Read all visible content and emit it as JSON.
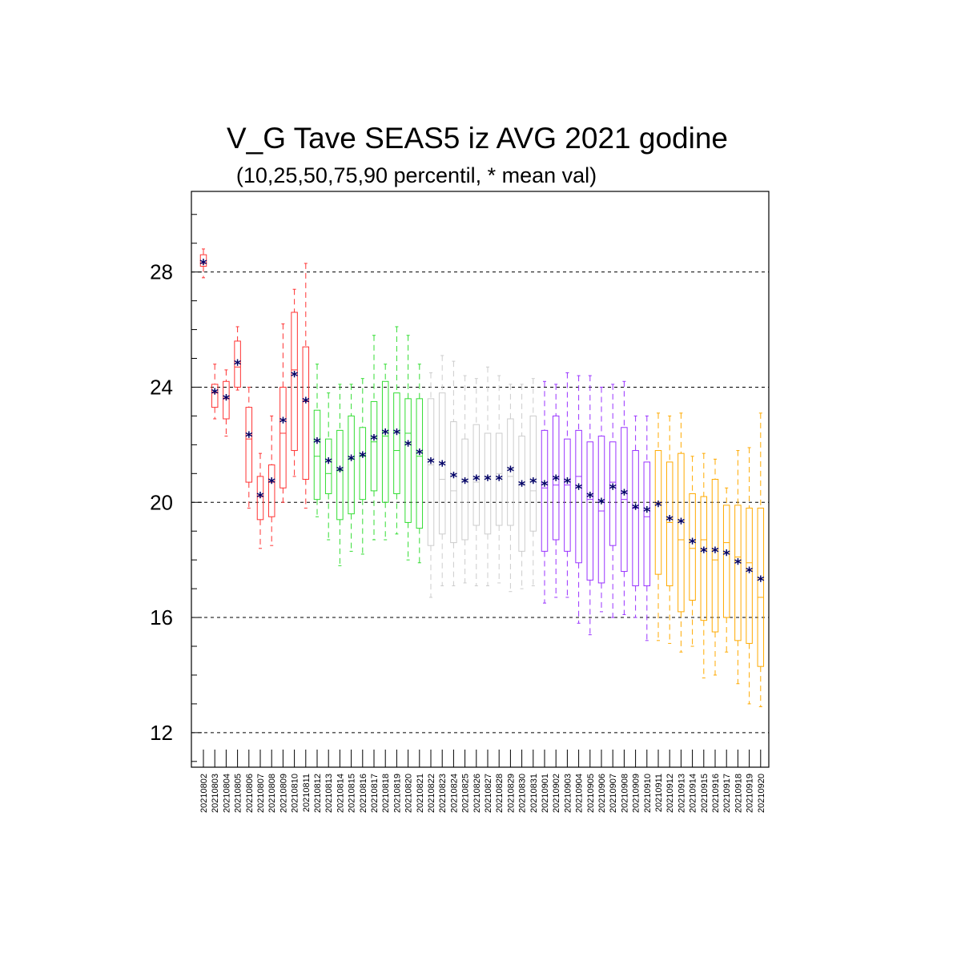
{
  "chart_data": {
    "type": "box",
    "title": "V_G Tave SEAS5 iz AVG 2021 godine",
    "subtitle": "(10,25,50,75,90 percentil, * mean val)",
    "ylim": [
      10.8,
      30.8
    ],
    "yticks": [
      12,
      16,
      20,
      24,
      28
    ],
    "ytick_labels": [
      "12",
      "16",
      "20",
      "24",
      "28"
    ],
    "grid_y": true,
    "mean_marker": "*",
    "colors": {
      "aug": "#ff3333",
      "early_aug": "#33dd33",
      "late_aug": "#cccccc",
      "early_sep": "#9933ff",
      "late_sep": "#ffaa00",
      "mean": "#000066"
    },
    "categories": [
      "20210802",
      "20210803",
      "20210804",
      "20210805",
      "20210806",
      "20210807",
      "20210808",
      "20210809",
      "20210810",
      "20210811",
      "20210812",
      "20210813",
      "20210814",
      "20210815",
      "20210816",
      "20210817",
      "20210818",
      "20210819",
      "20210820",
      "20210821",
      "20210822",
      "20210823",
      "20210824",
      "20210825",
      "20210826",
      "20210827",
      "20210828",
      "20210829",
      "20210830",
      "20210831",
      "20210901",
      "20210902",
      "20210903",
      "20210904",
      "20210905",
      "20210906",
      "20210907",
      "20210908",
      "20210909",
      "20210910",
      "20210911",
      "20210912",
      "20210913",
      "20210914",
      "20210915",
      "20210916",
      "20210917",
      "20210918",
      "20210919",
      "20210920"
    ],
    "box_colors": [
      "aug",
      "aug",
      "aug",
      "aug",
      "aug",
      "aug",
      "aug",
      "aug",
      "aug",
      "aug",
      "early_aug",
      "early_aug",
      "early_aug",
      "early_aug",
      "early_aug",
      "early_aug",
      "early_aug",
      "early_aug",
      "early_aug",
      "early_aug",
      "late_aug",
      "late_aug",
      "late_aug",
      "late_aug",
      "late_aug",
      "late_aug",
      "late_aug",
      "late_aug",
      "late_aug",
      "late_aug",
      "early_sep",
      "early_sep",
      "early_sep",
      "early_sep",
      "early_sep",
      "early_sep",
      "early_sep",
      "early_sep",
      "early_sep",
      "early_sep",
      "late_sep",
      "late_sep",
      "late_sep",
      "late_sep",
      "late_sep",
      "late_sep",
      "late_sep",
      "late_sep",
      "late_sep",
      "late_sep"
    ],
    "p10": [
      27.8,
      22.9,
      22.3,
      23.9,
      19.8,
      18.4,
      18.5,
      20.0,
      20.9,
      19.8,
      19.5,
      18.7,
      17.8,
      18.3,
      18.2,
      18.7,
      18.7,
      18.9,
      18.0,
      17.9,
      16.7,
      17.1,
      17.1,
      17.2,
      17.1,
      17.1,
      17.2,
      16.9,
      17.0,
      17.1,
      16.5,
      16.7,
      16.7,
      15.8,
      15.4,
      16.2,
      16.0,
      16.1,
      16.0,
      15.2,
      15.2,
      15.1,
      14.8,
      15.0,
      13.9,
      14.0,
      14.8,
      13.7,
      13.0,
      12.9
    ],
    "p25": [
      28.2,
      23.3,
      22.9,
      24.0,
      20.7,
      19.4,
      19.5,
      20.5,
      21.8,
      20.8,
      20.1,
      20.3,
      19.4,
      19.6,
      20.1,
      20.4,
      20.0,
      20.3,
      19.3,
      19.1,
      18.5,
      18.9,
      18.6,
      18.7,
      19.2,
      18.9,
      19.2,
      19.2,
      18.3,
      19.0,
      18.3,
      18.7,
      18.3,
      17.9,
      17.3,
      17.2,
      18.5,
      17.6,
      17.1,
      17.1,
      17.5,
      17.1,
      16.2,
      16.6,
      15.9,
      15.5,
      16.0,
      15.2,
      15.1,
      14.3
    ],
    "p50": [
      28.3,
      23.8,
      23.6,
      24.7,
      22.2,
      20.2,
      20.7,
      22.4,
      24.6,
      23.5,
      21.6,
      21.0,
      21.1,
      21.5,
      21.6,
      22.1,
      22.3,
      21.8,
      22.4,
      21.6,
      21.3,
      20.8,
      20.4,
      20.8,
      20.7,
      20.9,
      21.0,
      20.9,
      20.6,
      20.4,
      20.5,
      20.6,
      20.6,
      20.9,
      20.1,
      19.7,
      20.7,
      20.1,
      19.8,
      19.5,
      20.0,
      19.3,
      18.7,
      18.4,
      18.7,
      18.0,
      18.6,
      18.1,
      17.9,
      16.7
    ],
    "p75": [
      28.6,
      24.1,
      24.2,
      25.6,
      23.3,
      20.9,
      21.3,
      24.0,
      26.6,
      25.4,
      23.2,
      22.2,
      22.5,
      23.0,
      22.6,
      23.5,
      24.2,
      23.8,
      23.6,
      23.6,
      23.6,
      23.8,
      22.8,
      22.2,
      22.7,
      22.4,
      22.4,
      22.9,
      22.3,
      23.0,
      22.5,
      23.0,
      22.2,
      22.5,
      22.1,
      22.3,
      22.1,
      22.6,
      21.8,
      21.4,
      21.8,
      21.4,
      21.7,
      20.3,
      20.2,
      20.8,
      19.9,
      19.9,
      19.8,
      19.8
    ],
    "p90": [
      28.8,
      24.8,
      24.6,
      26.1,
      24.0,
      21.7,
      23.0,
      26.2,
      27.4,
      28.3,
      24.8,
      23.8,
      24.1,
      24.1,
      24.3,
      25.8,
      24.8,
      26.1,
      25.8,
      24.8,
      24.5,
      25.1,
      24.9,
      24.4,
      24.3,
      24.7,
      24.4,
      24.1,
      24.1,
      24.3,
      24.2,
      24.1,
      24.5,
      24.4,
      24.4,
      24.0,
      24.1,
      24.2,
      23.0,
      23.0,
      23.1,
      23.0,
      23.1,
      21.6,
      21.7,
      21.5,
      20.5,
      21.8,
      21.9,
      23.1
    ],
    "mean": [
      28.3,
      23.8,
      23.6,
      24.8,
      22.3,
      20.2,
      20.7,
      22.8,
      24.4,
      23.5,
      22.1,
      21.4,
      21.1,
      21.5,
      21.6,
      22.2,
      22.4,
      22.4,
      22.0,
      21.7,
      21.4,
      21.3,
      20.9,
      20.7,
      20.8,
      20.8,
      20.8,
      21.1,
      20.6,
      20.7,
      20.6,
      20.8,
      20.7,
      20.5,
      20.2,
      20.0,
      20.5,
      20.3,
      19.8,
      19.7,
      19.9,
      19.4,
      19.3,
      18.6,
      18.3,
      18.3,
      18.2,
      17.9,
      17.6,
      17.3
    ]
  }
}
